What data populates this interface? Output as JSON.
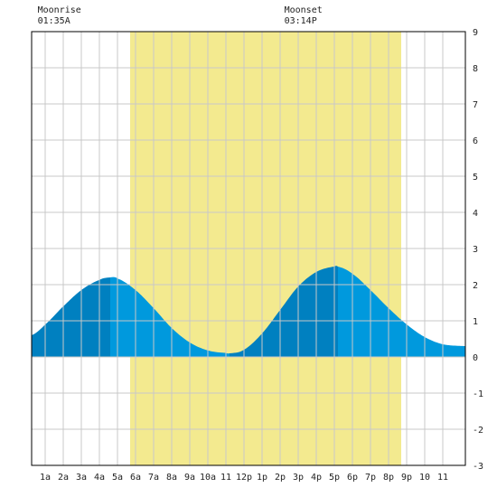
{
  "chart_data": {
    "type": "area",
    "title": "",
    "xlabel": "",
    "ylabel": "",
    "x_range_hours": [
      0.25,
      24.25
    ],
    "ylim": [
      -3,
      9
    ],
    "y_ticks": [
      -3,
      -2,
      -1,
      0,
      1,
      2,
      3,
      4,
      5,
      6,
      7,
      8,
      9
    ],
    "x_tick_labels": [
      {
        "hour": 1,
        "label": "1a"
      },
      {
        "hour": 2,
        "label": "2a"
      },
      {
        "hour": 3,
        "label": "3a"
      },
      {
        "hour": 4,
        "label": "4a"
      },
      {
        "hour": 5,
        "label": "5a"
      },
      {
        "hour": 6,
        "label": "6a"
      },
      {
        "hour": 7,
        "label": "7a"
      },
      {
        "hour": 8,
        "label": "8a"
      },
      {
        "hour": 9,
        "label": "9a"
      },
      {
        "hour": 10,
        "label": "10a"
      },
      {
        "hour": 11,
        "label": "11"
      },
      {
        "hour": 12,
        "label": "12p"
      },
      {
        "hour": 13,
        "label": "1p"
      },
      {
        "hour": 14,
        "label": "2p"
      },
      {
        "hour": 15,
        "label": "3p"
      },
      {
        "hour": 16,
        "label": "4p"
      },
      {
        "hour": 17,
        "label": "5p"
      },
      {
        "hour": 18,
        "label": "6p"
      },
      {
        "hour": 19,
        "label": "7p"
      },
      {
        "hour": 20,
        "label": "8p"
      },
      {
        "hour": 21,
        "label": "9p"
      },
      {
        "hour": 22,
        "label": "10"
      },
      {
        "hour": 23,
        "label": "11"
      }
    ],
    "grid": true,
    "daylight_hours": [
      5.7,
      20.7
    ],
    "series": [
      {
        "x": [
          0.25,
          1,
          2,
          3,
          4,
          4.6,
          5,
          6,
          7,
          8,
          9,
          10,
          11,
          11.2,
          12,
          13,
          14,
          15,
          16,
          17,
          17.2,
          18,
          19,
          20,
          21,
          22,
          23,
          24.25
        ],
        "y": [
          0.6,
          0.9,
          1.4,
          1.85,
          2.13,
          2.2,
          2.17,
          1.85,
          1.35,
          0.8,
          0.4,
          0.18,
          0.11,
          0.1,
          0.2,
          0.65,
          1.3,
          1.95,
          2.35,
          2.5,
          2.5,
          2.3,
          1.85,
          1.35,
          0.9,
          0.55,
          0.35,
          0.3
        ]
      }
    ],
    "rising_intervals": [
      [
        0.25,
        4.6
      ],
      [
        11.2,
        17.2
      ]
    ],
    "annotations": [
      {
        "hour": 1.58,
        "label": "Moonrise",
        "time": "01:35A"
      },
      {
        "hour": 15.23,
        "label": "Moonset",
        "time": "03:14P"
      }
    ],
    "colors": {
      "background": "#ffffff",
      "daylight": "#f3ea8f",
      "grid": "#c8c8c8",
      "tide_rising": "#0080c0",
      "tide_falling": "#0099dd",
      "frame": "#000000",
      "text": "#222222"
    }
  }
}
